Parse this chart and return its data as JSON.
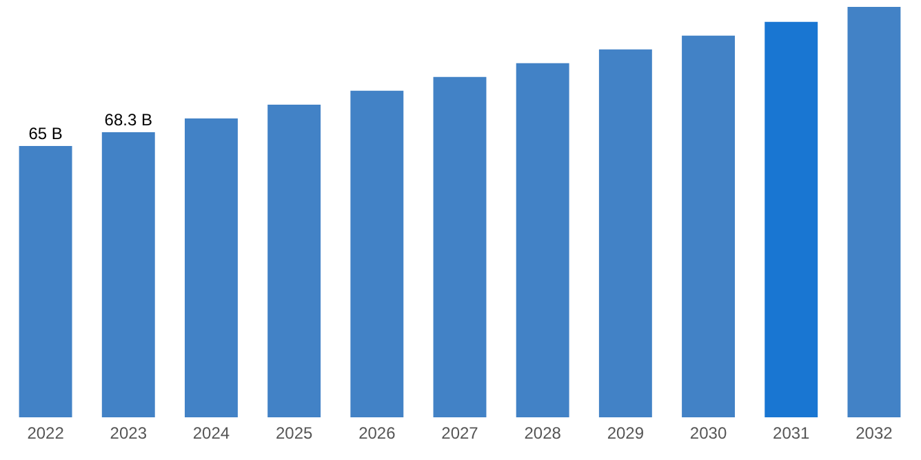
{
  "chart_data": {
    "type": "bar",
    "categories": [
      "2022",
      "2023",
      "2024",
      "2025",
      "2026",
      "2027",
      "2028",
      "2029",
      "2030",
      "2031",
      "2032"
    ],
    "values": [
      65,
      68.3,
      71.6,
      74.9,
      78.2,
      81.5,
      84.8,
      88.1,
      91.4,
      94.7,
      98.3
    ],
    "value_labels": [
      "65 B",
      "68.3 B",
      null,
      null,
      null,
      null,
      null,
      null,
      null,
      null,
      null
    ],
    "colors": [
      "#4282c6",
      "#4282c6",
      "#4282c6",
      "#4282c6",
      "#4282c6",
      "#4282c6",
      "#4282c6",
      "#4282c6",
      "#4282c6",
      "#1976d2",
      "#4282c6"
    ],
    "grid": false
  }
}
